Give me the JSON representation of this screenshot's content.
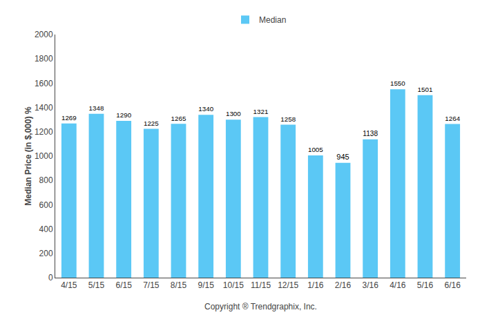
{
  "chart_data": {
    "type": "bar",
    "categories": [
      "4/15",
      "5/15",
      "6/15",
      "7/15",
      "8/15",
      "9/15",
      "10/15",
      "11/15",
      "12/15",
      "1/16",
      "2/16",
      "3/16",
      "4/16",
      "5/16",
      "6/16"
    ],
    "series": [
      {
        "name": "Median",
        "color": "#5BC8F5",
        "values": [
          1269,
          1348,
          1290,
          1225,
          1265,
          1340,
          1300,
          1321,
          1258,
          1005,
          945,
          1138,
          1550,
          1501,
          1264
        ]
      }
    ],
    "xlabel": "Copyright ® Trendgraphix, Inc.",
    "ylabel": "Median Price (in $,000) %",
    "ylim": [
      0,
      2000
    ],
    "yticks": [
      0,
      200,
      400,
      600,
      800,
      1000,
      1200,
      1400,
      1600,
      1800,
      2000
    ],
    "grid": false,
    "legend": "top",
    "data_labels": true
  }
}
